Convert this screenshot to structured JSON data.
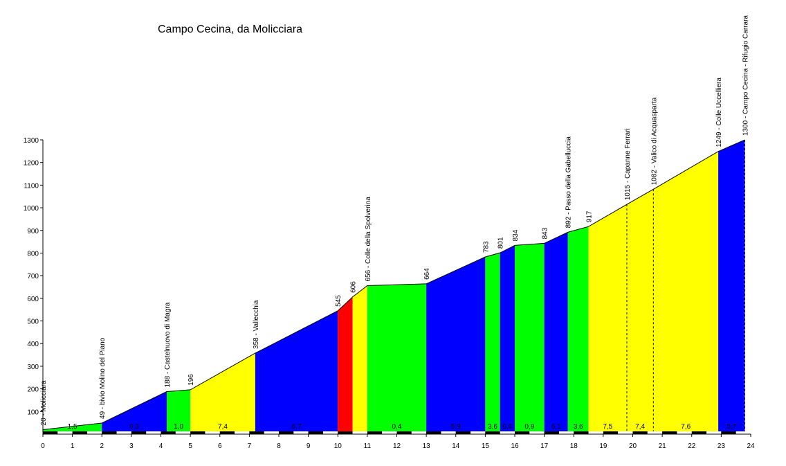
{
  "chart_data": {
    "type": "area",
    "title": "Campo Cecina, da Molicciara",
    "xlabel": "",
    "ylabel": "",
    "xlim": [
      0,
      24
    ],
    "ylim": [
      0,
      1300
    ],
    "x_ticks": [
      "0",
      "1",
      "2",
      "3",
      "4",
      "5",
      "6",
      "7",
      "8",
      "9",
      "10",
      "11",
      "12",
      "13",
      "14",
      "15",
      "16",
      "17",
      "18",
      "19",
      "20",
      "21",
      "22",
      "23",
      "24"
    ],
    "y_ticks": [
      "100",
      "200",
      "300",
      "400",
      "500",
      "600",
      "700",
      "800",
      "900",
      "1000",
      "1100",
      "1200",
      "1300"
    ],
    "profile": [
      {
        "km": 0,
        "alt": 20
      },
      {
        "km": 2.0,
        "alt": 49
      },
      {
        "km": 4.2,
        "alt": 188
      },
      {
        "km": 5.0,
        "alt": 196
      },
      {
        "km": 7.2,
        "alt": 358
      },
      {
        "km": 10.0,
        "alt": 545
      },
      {
        "km": 10.5,
        "alt": 606
      },
      {
        "km": 11.0,
        "alt": 656
      },
      {
        "km": 13.0,
        "alt": 664
      },
      {
        "km": 15.0,
        "alt": 783
      },
      {
        "km": 15.5,
        "alt": 801
      },
      {
        "km": 16.0,
        "alt": 834
      },
      {
        "km": 17.0,
        "alt": 843
      },
      {
        "km": 17.8,
        "alt": 892
      },
      {
        "km": 18.5,
        "alt": 917
      },
      {
        "km": 19.8,
        "alt": 1015
      },
      {
        "km": 20.7,
        "alt": 1082
      },
      {
        "km": 22.9,
        "alt": 1249
      },
      {
        "km": 23.8,
        "alt": 1300
      }
    ],
    "segments": [
      {
        "x0": 0,
        "x1": 2.0,
        "grade": "1,5",
        "color": "#00ff00"
      },
      {
        "x0": 2.0,
        "x1": 4.2,
        "grade": "6,3",
        "color": "#0000ff"
      },
      {
        "x0": 4.2,
        "x1": 5.0,
        "grade": "1,0",
        "color": "#00ff00"
      },
      {
        "x0": 5.0,
        "x1": 7.2,
        "grade": "7,4",
        "color": "#ffff00"
      },
      {
        "x0": 7.2,
        "x1": 10.0,
        "grade": "6,7",
        "color": "#0000ff"
      },
      {
        "x0": 10.0,
        "x1": 10.5,
        "grade": "",
        "color": "#ff0000"
      },
      {
        "x0": 10.5,
        "x1": 11.0,
        "grade": "",
        "color": "#ffff00"
      },
      {
        "x0": 11.0,
        "x1": 13.0,
        "grade": "0,4",
        "color": "#00ff00"
      },
      {
        "x0": 13.0,
        "x1": 15.0,
        "grade": "5,9",
        "color": "#0000ff"
      },
      {
        "x0": 15.0,
        "x1": 15.5,
        "grade": "3,6",
        "color": "#00ff00"
      },
      {
        "x0": 15.5,
        "x1": 16.0,
        "grade": "6,6",
        "color": "#0000ff"
      },
      {
        "x0": 16.0,
        "x1": 17.0,
        "grade": "0,9",
        "color": "#00ff00"
      },
      {
        "x0": 17.0,
        "x1": 17.8,
        "grade": "6,1",
        "color": "#0000ff"
      },
      {
        "x0": 17.8,
        "x1": 18.5,
        "grade": "3,6",
        "color": "#00ff00"
      },
      {
        "x0": 18.5,
        "x1": 19.8,
        "grade": "7,5",
        "color": "#ffff00"
      },
      {
        "x0": 19.8,
        "x1": 20.7,
        "grade": "7,4",
        "color": "#ffff00"
      },
      {
        "x0": 20.7,
        "x1": 22.9,
        "grade": "7,6",
        "color": "#ffff00"
      },
      {
        "x0": 22.9,
        "x1": 23.8,
        "grade": "5,7",
        "color": "#0000ff"
      }
    ],
    "waypoints": [
      {
        "km": 0,
        "alt": 20,
        "label": "20 - Molicciara"
      },
      {
        "km": 2.0,
        "alt": 49,
        "label": "49 - bivio Molino del Piano"
      },
      {
        "km": 4.2,
        "alt": 188,
        "label": "188 - Castelnuovo di Magra"
      },
      {
        "km": 5.0,
        "alt": 196,
        "label": "196"
      },
      {
        "km": 7.2,
        "alt": 358,
        "label": "358 - Vallecchia"
      },
      {
        "km": 10.0,
        "alt": 545,
        "label": "545"
      },
      {
        "km": 10.5,
        "alt": 606,
        "label": "606"
      },
      {
        "km": 11.0,
        "alt": 656,
        "label": "656 - Colle della Spolverina"
      },
      {
        "km": 13.0,
        "alt": 664,
        "label": "664"
      },
      {
        "km": 15.0,
        "alt": 783,
        "label": "783"
      },
      {
        "km": 15.5,
        "alt": 801,
        "label": "801"
      },
      {
        "km": 16.0,
        "alt": 834,
        "label": "834"
      },
      {
        "km": 17.0,
        "alt": 843,
        "label": "843"
      },
      {
        "km": 17.8,
        "alt": 892,
        "label": "892 - Passo della Gabelluccia"
      },
      {
        "km": 18.5,
        "alt": 917,
        "label": "917"
      },
      {
        "km": 19.8,
        "alt": 1015,
        "label": "1015 - Capanne Ferrari",
        "dashed": true
      },
      {
        "km": 20.7,
        "alt": 1082,
        "label": "1082 - Valico di Acquasparta",
        "dashed": true
      },
      {
        "km": 22.9,
        "alt": 1249,
        "label": "1249 - Colle Uccelliera"
      },
      {
        "km": 23.8,
        "alt": 1300,
        "label": "1300 - Campo Cecina - Rifugio Carrara",
        "dashed": true
      }
    ],
    "grid": false,
    "legend": "none"
  }
}
